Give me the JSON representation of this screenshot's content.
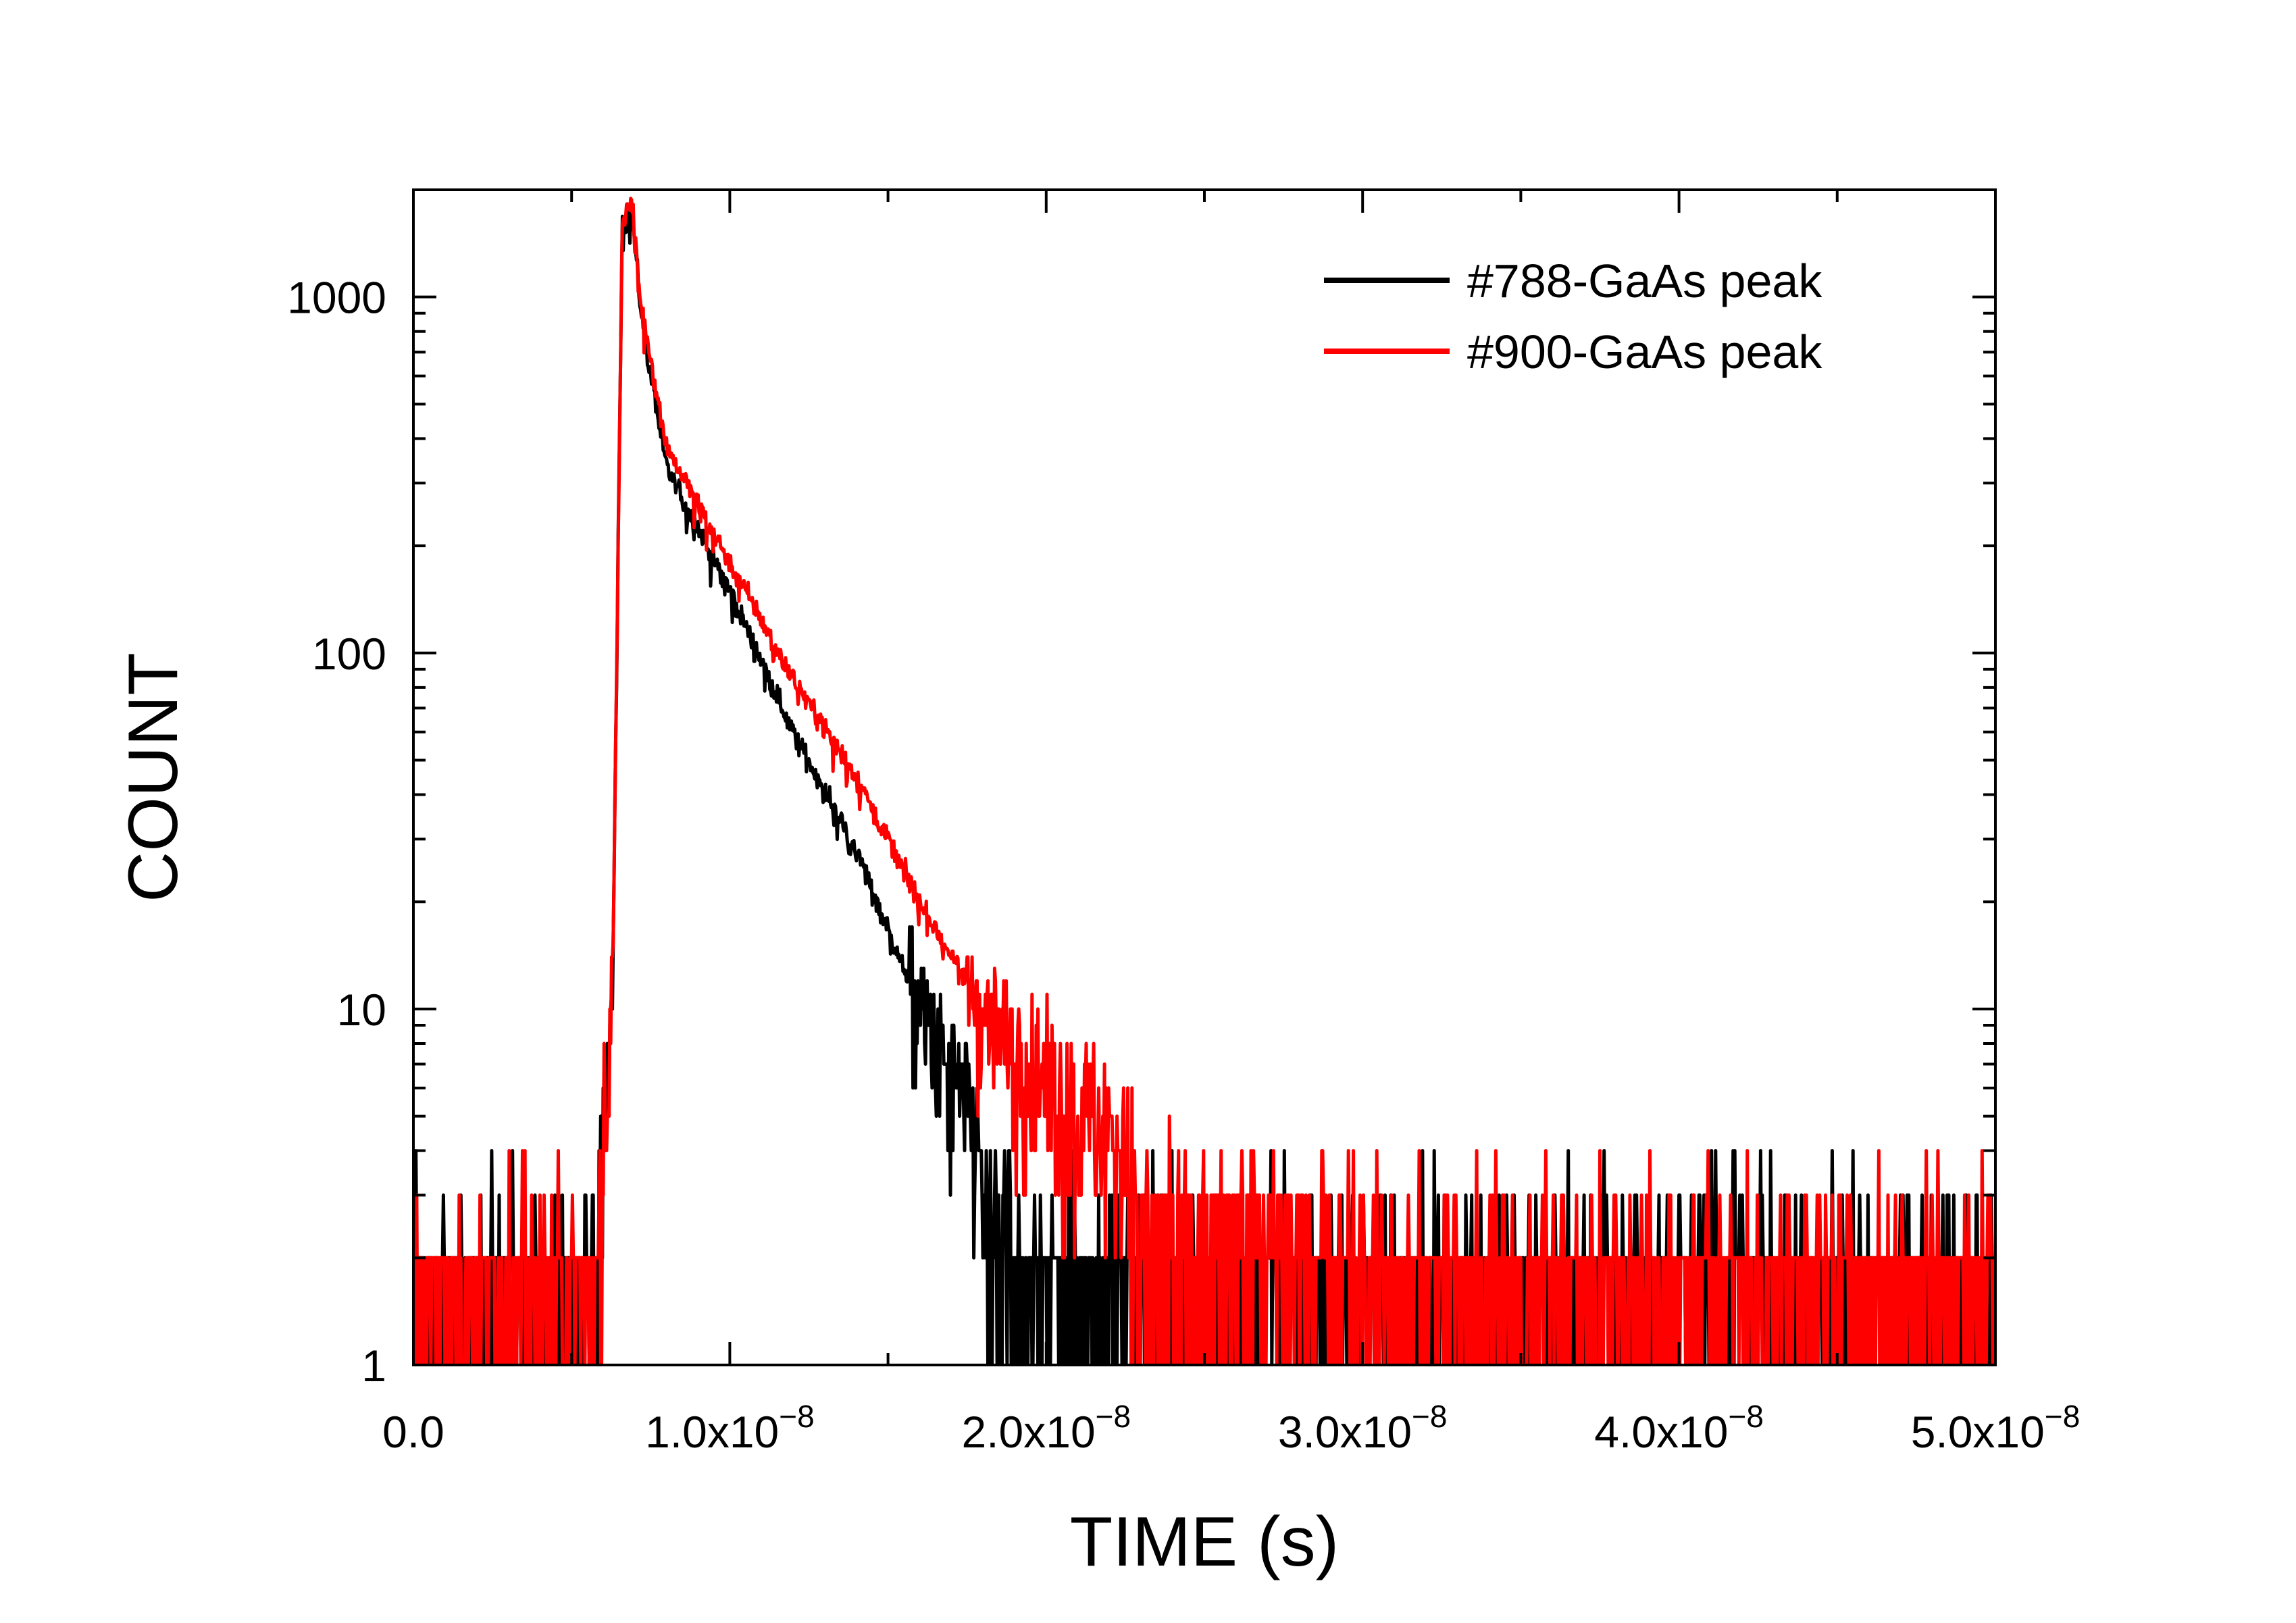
{
  "chart_data": {
    "type": "line",
    "title": "",
    "xlabel": "TIME (s)",
    "ylabel": "COUNT",
    "xlim": [
      0,
      5e-08
    ],
    "ylim": [
      1,
      2000
    ],
    "yscale": "log",
    "grid": false,
    "legend_position": "top-right",
    "x_ticks": [
      {
        "value": 0,
        "mantissa": "0.0",
        "exp": ""
      },
      {
        "value": 1e-08,
        "mantissa": "1.0x10",
        "exp": "−8"
      },
      {
        "value": 2e-08,
        "mantissa": "2.0x10",
        "exp": "−8"
      },
      {
        "value": 3e-08,
        "mantissa": "3.0x10",
        "exp": "−8"
      },
      {
        "value": 4e-08,
        "mantissa": "4.0x10",
        "exp": "−8"
      },
      {
        "value": 5e-08,
        "mantissa": "5.0x10",
        "exp": "−8"
      }
    ],
    "y_ticks": [
      {
        "value": 1,
        "label": "1"
      },
      {
        "value": 10,
        "label": "10"
      },
      {
        "value": 100,
        "label": "100"
      },
      {
        "value": 1000,
        "label": "1000"
      }
    ],
    "series": [
      {
        "name": "#788-GaAs peak",
        "color": "#000000",
        "baseline": 2,
        "peak_time": 6.7e-09,
        "peak_count": 1750,
        "key_points": [
          [
            0,
            2
          ],
          [
            5.8e-09,
            2
          ],
          [
            6.3e-09,
            12
          ],
          [
            6.6e-09,
            1600
          ],
          [
            6.9e-09,
            1750
          ],
          [
            7.2e-09,
            900
          ],
          [
            8e-09,
            330
          ],
          [
            1e-08,
            150
          ],
          [
            1.2e-08,
            60
          ],
          [
            1.4e-08,
            28
          ],
          [
            1.6e-08,
            10
          ],
          [
            1.8e-08,
            4
          ],
          [
            2e-08,
            1.6
          ],
          [
            5e-08,
            1.6
          ]
        ]
      },
      {
        "name": "#900-GaAs peak",
        "color": "#ff0000",
        "baseline": 2,
        "peak_time": 6.8e-09,
        "peak_count": 1850,
        "key_points": [
          [
            0,
            2
          ],
          [
            5.8e-09,
            2
          ],
          [
            6.3e-09,
            12
          ],
          [
            6.6e-09,
            1650
          ],
          [
            6.9e-09,
            1850
          ],
          [
            7.2e-09,
            950
          ],
          [
            8e-09,
            380
          ],
          [
            1e-08,
            180
          ],
          [
            1.2e-08,
            85
          ],
          [
            1.4e-08,
            45
          ],
          [
            1.6e-08,
            20
          ],
          [
            1.8e-08,
            10
          ],
          [
            2e-08,
            6
          ],
          [
            2.4e-08,
            3.3
          ],
          [
            3e-08,
            2.2
          ],
          [
            5e-08,
            2
          ]
        ]
      }
    ]
  }
}
